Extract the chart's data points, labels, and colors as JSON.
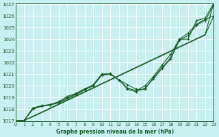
{
  "title": "Graphe pression niveau de la mer (hPa)",
  "bg_color": "#c8f0f0",
  "grid_color": "#ffffff",
  "line_color": "#1a5e2a",
  "ylim": [
    1017,
    1027
  ],
  "yticks": [
    1017,
    1018,
    1019,
    1020,
    1021,
    1022,
    1023,
    1024,
    1025,
    1026,
    1027
  ],
  "xlim": [
    0,
    23
  ],
  "xticks": [
    0,
    1,
    2,
    3,
    4,
    5,
    6,
    7,
    8,
    9,
    10,
    11,
    12,
    13,
    14,
    15,
    16,
    17,
    18,
    19,
    20,
    21,
    22,
    23
  ],
  "series": {
    "straight1": [
      1017.0,
      1017.05,
      1017.4,
      1017.75,
      1018.1,
      1018.45,
      1018.8,
      1019.15,
      1019.5,
      1019.85,
      1020.2,
      1020.55,
      1020.9,
      1021.25,
      1021.6,
      1021.95,
      1022.3,
      1022.65,
      1023.0,
      1023.35,
      1023.7,
      1024.05,
      1024.4,
      1027.1
    ],
    "straight2": [
      1017.0,
      1017.05,
      1017.35,
      1017.7,
      1018.05,
      1018.4,
      1018.75,
      1019.1,
      1019.45,
      1019.8,
      1020.15,
      1020.5,
      1020.85,
      1021.2,
      1021.55,
      1021.9,
      1022.25,
      1022.6,
      1022.95,
      1023.3,
      1023.65,
      1024.0,
      1024.35,
      1026.0
    ],
    "curvy1": [
      1017.0,
      1017.05,
      1018.1,
      1018.3,
      1018.4,
      1018.6,
      1019.0,
      1019.3,
      1019.7,
      1020.1,
      1021.0,
      1021.0,
      1020.5,
      1020.1,
      1019.7,
      1019.7,
      1020.7,
      1021.6,
      1022.4,
      1024.0,
      1024.5,
      1025.3,
      1025.7,
      1026.0
    ],
    "curvy2": [
      1017.0,
      1017.05,
      1018.1,
      1018.3,
      1018.4,
      1018.65,
      1019.1,
      1019.35,
      1019.75,
      1020.05,
      1021.0,
      1021.05,
      1020.5,
      1019.8,
      1019.6,
      1020.0,
      1020.8,
      1021.8,
      1022.7,
      1024.0,
      1024.0,
      1025.6,
      1025.8,
      1027.1
    ],
    "curvy3": [
      1017.0,
      1017.05,
      1018.0,
      1018.25,
      1018.35,
      1018.55,
      1018.9,
      1019.25,
      1019.65,
      1020.0,
      1020.9,
      1021.0,
      1020.5,
      1019.7,
      1019.5,
      1019.8,
      1020.6,
      1021.5,
      1022.3,
      1023.9,
      1024.3,
      1025.2,
      1025.6,
      1026.9
    ]
  }
}
